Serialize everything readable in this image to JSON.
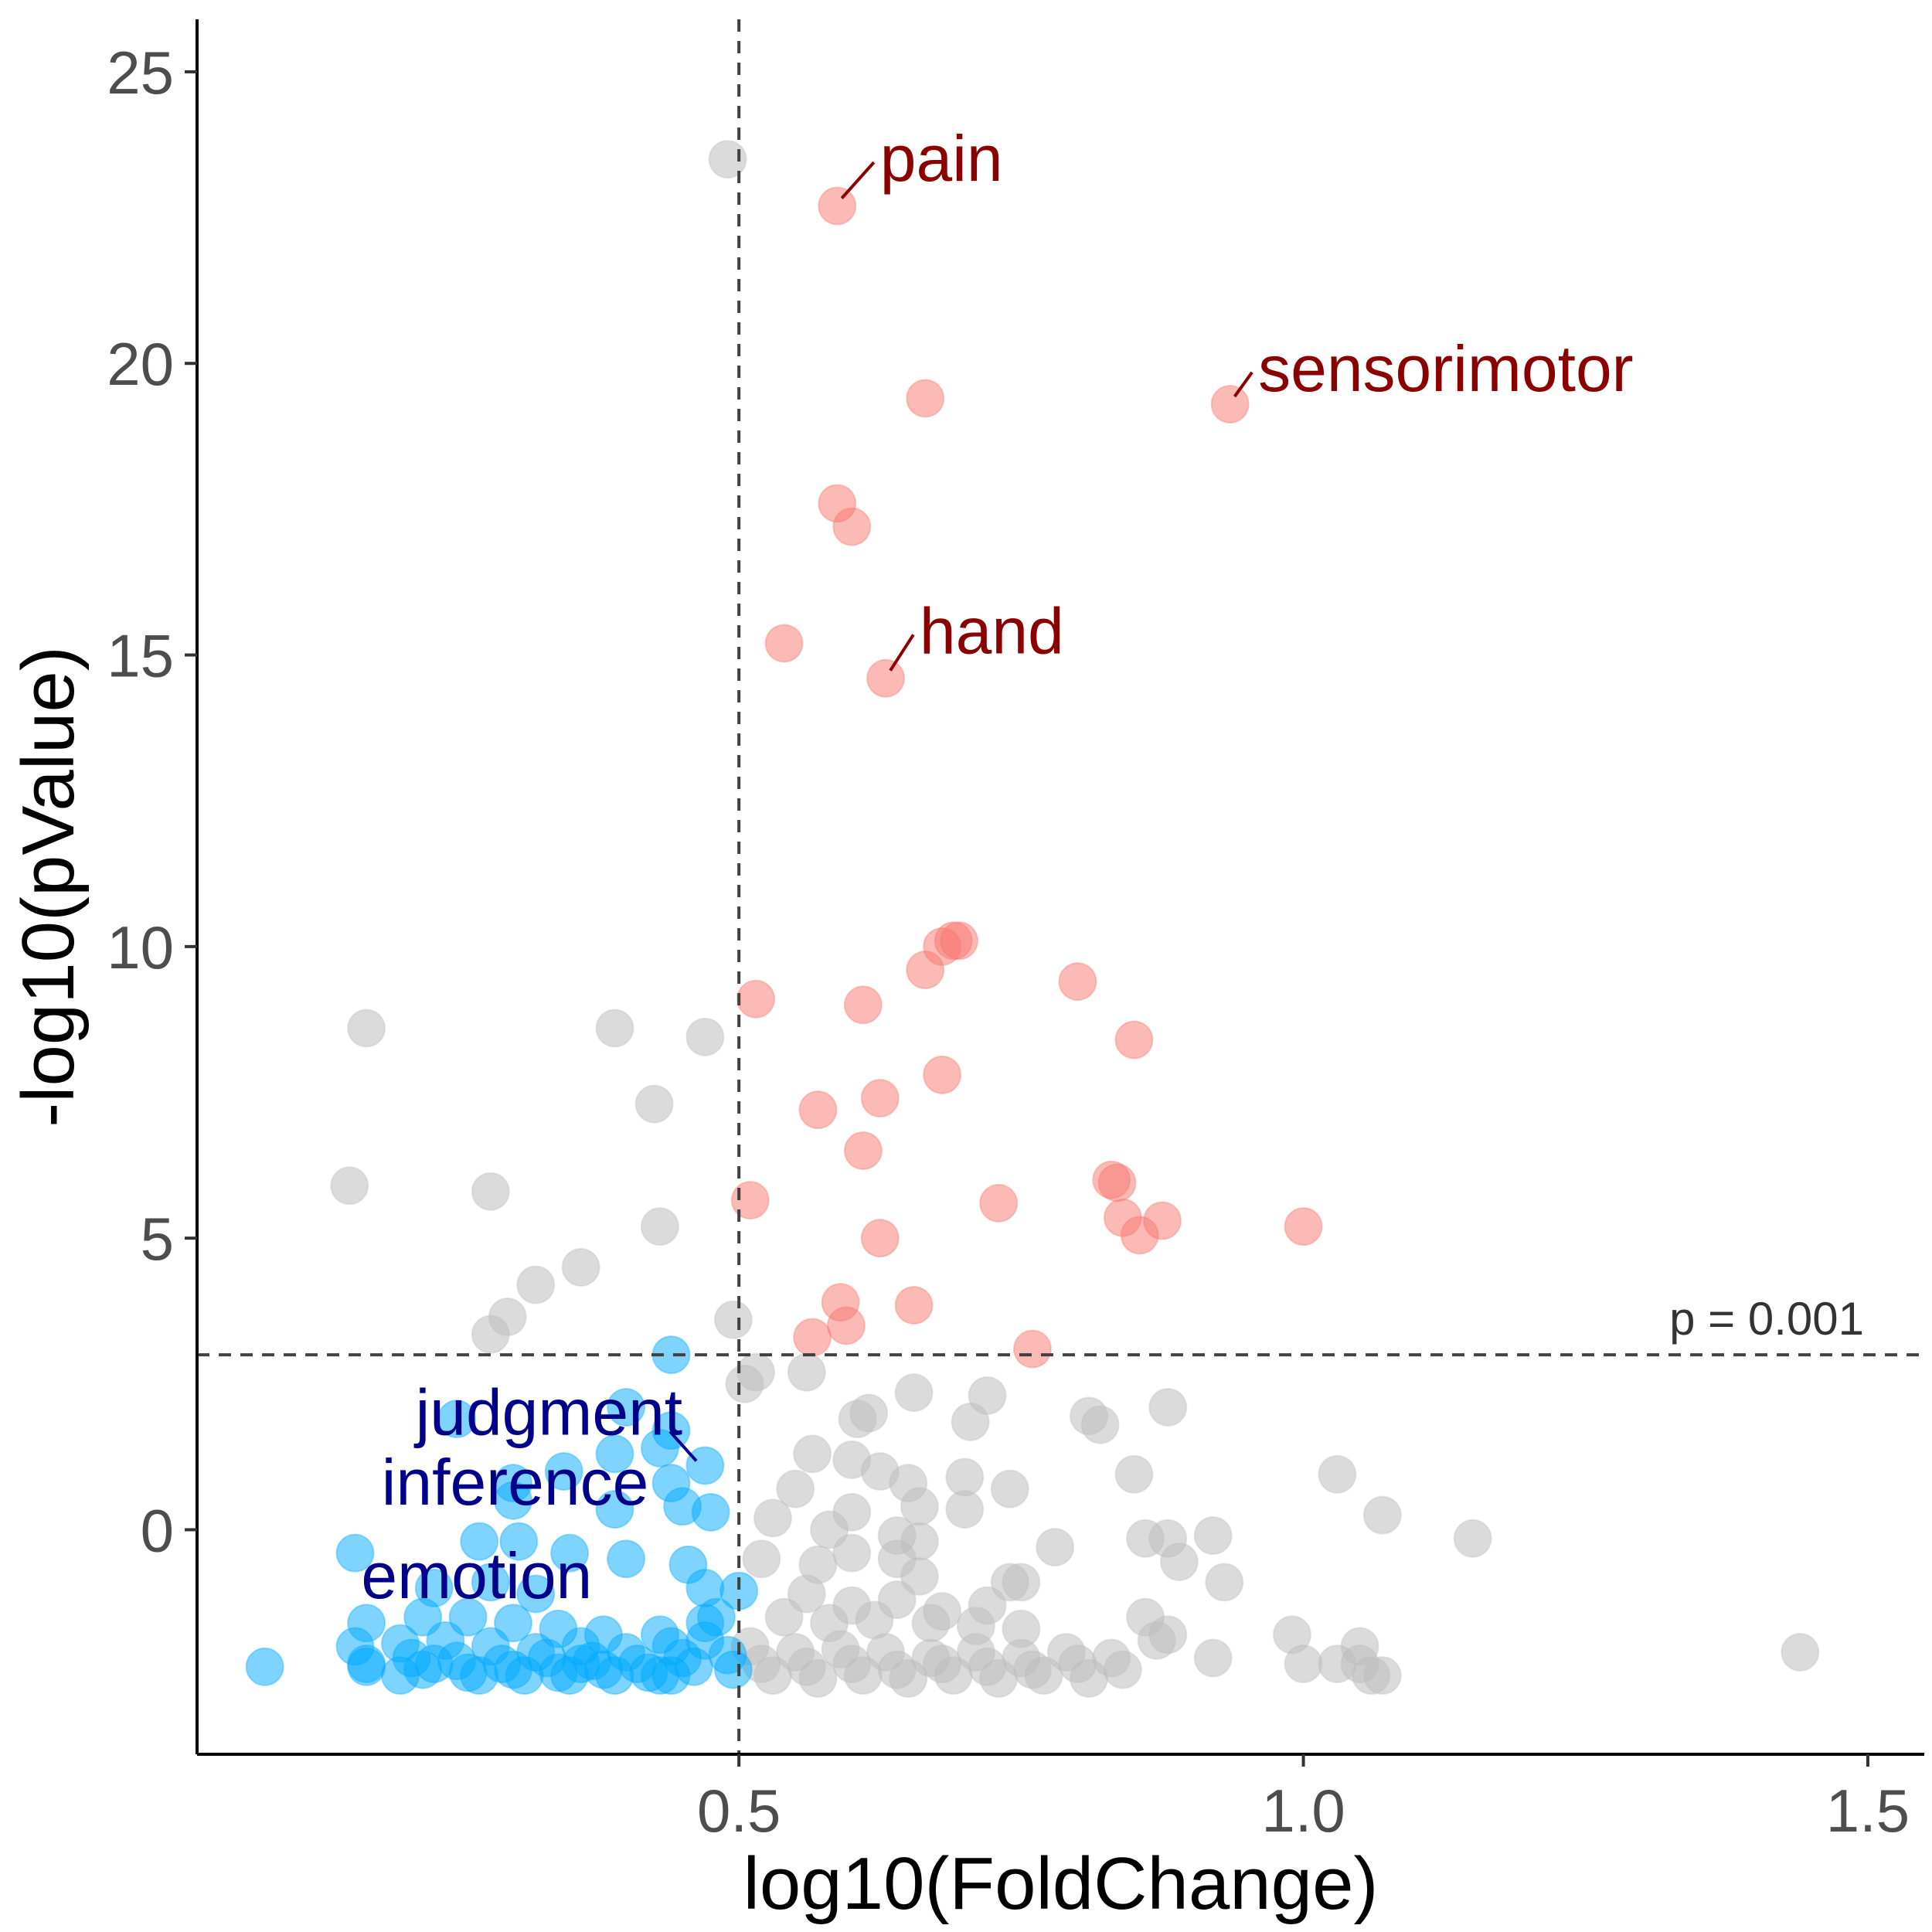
{
  "chart_data": {
    "type": "scatter",
    "xlabel": "log10(FoldChange)",
    "ylabel": "-log10(pValue)",
    "xlim": [
      0.02,
      1.55
    ],
    "ylim": [
      -3.85,
      25.9
    ],
    "xticks": [
      0.5,
      1.0,
      1.5
    ],
    "xtick_labels": [
      "0.5",
      "1.0",
      "1.5"
    ],
    "yticks": [
      0,
      5,
      10,
      15,
      20,
      25
    ],
    "ytick_labels": [
      "0",
      "5",
      "10",
      "15",
      "20",
      "25"
    ],
    "grid": false,
    "legend": "none",
    "reference_lines": {
      "vertical_x": 0.5,
      "horizontal_y": 3,
      "horizontal_label": "p = 0.001"
    },
    "colors": {
      "up": "#F8766D",
      "down": "#00A9FF",
      "ns": "#BEBEBE",
      "up_label": "#8B0000",
      "down_label": "#00008B"
    },
    "annotations": [
      {
        "text": "pain",
        "point": [
          0.587,
          22.7
        ],
        "label": [
          0.625,
          23.5
        ],
        "group": "up"
      },
      {
        "text": "sensorimotor",
        "point": [
          0.935,
          19.3
        ],
        "label": [
          0.96,
          19.9
        ],
        "group": "up"
      },
      {
        "text": "hand",
        "point": [
          0.63,
          14.6
        ],
        "label": [
          0.66,
          15.4
        ],
        "group": "up"
      },
      {
        "text": "judgment",
        "point": [
          0.465,
          1.1
        ],
        "label": [
          0.45,
          2.0
        ],
        "group": "down"
      },
      {
        "text": "inference",
        "point": [
          0.44,
          0.8
        ],
        "label": [
          0.42,
          0.8
        ],
        "group": "down"
      },
      {
        "text": "emotion",
        "point": [
          0.38,
          -0.8
        ],
        "label": [
          0.37,
          -0.8
        ],
        "group": "down"
      }
    ],
    "series": [
      {
        "group": "up",
        "points": [
          [
            0.587,
            22.7
          ],
          [
            0.665,
            19.4
          ],
          [
            0.935,
            19.3
          ],
          [
            0.587,
            17.6
          ],
          [
            0.6,
            17.2
          ],
          [
            0.54,
            15.2
          ],
          [
            0.63,
            14.6
          ],
          [
            0.695,
            10.1
          ],
          [
            0.69,
            10.1
          ],
          [
            0.68,
            10.0
          ],
          [
            0.665,
            9.6
          ],
          [
            0.8,
            9.4
          ],
          [
            0.515,
            9.1
          ],
          [
            0.61,
            9.0
          ],
          [
            0.85,
            8.4
          ],
          [
            0.68,
            7.8
          ],
          [
            0.625,
            7.4
          ],
          [
            0.57,
            7.2
          ],
          [
            0.61,
            6.5
          ],
          [
            0.83,
            6.0
          ],
          [
            0.835,
            5.95
          ],
          [
            0.51,
            5.65
          ],
          [
            0.73,
            5.6
          ],
          [
            0.84,
            5.35
          ],
          [
            0.875,
            5.3
          ],
          [
            0.855,
            5.05
          ],
          [
            1.0,
            5.2
          ],
          [
            0.625,
            5.0
          ],
          [
            0.59,
            3.9
          ],
          [
            0.655,
            3.85
          ],
          [
            0.595,
            3.5
          ],
          [
            0.565,
            3.3
          ],
          [
            0.76,
            3.1
          ]
        ]
      },
      {
        "group": "down",
        "points": [
          [
            0.44,
            3.0
          ],
          [
            0.4,
            2.1
          ],
          [
            0.25,
            1.9
          ],
          [
            0.44,
            1.7
          ],
          [
            0.43,
            1.4
          ],
          [
            0.39,
            1.3
          ],
          [
            0.345,
            1.0
          ],
          [
            0.3,
            0.8
          ],
          [
            0.44,
            0.8
          ],
          [
            0.47,
            1.1
          ],
          [
            0.39,
            0.35
          ],
          [
            0.45,
            0.4
          ],
          [
            0.475,
            0.3
          ],
          [
            0.3,
            0.5
          ],
          [
            0.27,
            -0.2
          ],
          [
            0.305,
            -0.2
          ],
          [
            0.35,
            -0.4
          ],
          [
            0.4,
            -0.5
          ],
          [
            0.455,
            -0.6
          ],
          [
            0.16,
            -0.4
          ],
          [
            0.28,
            -0.9
          ],
          [
            0.23,
            -1.0
          ],
          [
            0.32,
            -1.1
          ],
          [
            0.47,
            -1.0
          ],
          [
            0.5,
            -1.05
          ],
          [
            0.17,
            -1.6
          ],
          [
            0.22,
            -1.5
          ],
          [
            0.26,
            -1.5
          ],
          [
            0.3,
            -1.6
          ],
          [
            0.34,
            -1.7
          ],
          [
            0.38,
            -1.8
          ],
          [
            0.43,
            -1.8
          ],
          [
            0.47,
            -1.6
          ],
          [
            0.48,
            -1.5
          ],
          [
            0.16,
            -2.0
          ],
          [
            0.2,
            -1.95
          ],
          [
            0.24,
            -1.9
          ],
          [
            0.28,
            -2.0
          ],
          [
            0.32,
            -2.1
          ],
          [
            0.36,
            -2.0
          ],
          [
            0.4,
            -2.1
          ],
          [
            0.44,
            -2.0
          ],
          [
            0.47,
            -1.9
          ],
          [
            0.17,
            -2.3
          ],
          [
            0.21,
            -2.2
          ],
          [
            0.25,
            -2.25
          ],
          [
            0.29,
            -2.3
          ],
          [
            0.33,
            -2.2
          ],
          [
            0.37,
            -2.25
          ],
          [
            0.41,
            -2.3
          ],
          [
            0.45,
            -2.2
          ],
          [
            0.49,
            -2.15
          ],
          [
            0.08,
            -2.35
          ],
          [
            0.17,
            -2.35
          ],
          [
            0.22,
            -2.4
          ],
          [
            0.26,
            -2.45
          ],
          [
            0.3,
            -2.4
          ],
          [
            0.34,
            -2.45
          ],
          [
            0.38,
            -2.4
          ],
          [
            0.42,
            -2.45
          ],
          [
            0.46,
            -2.35
          ],
          [
            0.495,
            -2.4
          ],
          [
            0.2,
            -2.5
          ],
          [
            0.27,
            -2.5
          ],
          [
            0.31,
            -2.5
          ],
          [
            0.35,
            -2.5
          ],
          [
            0.39,
            -2.5
          ],
          [
            0.43,
            -2.5
          ],
          [
            0.23,
            -2.3
          ],
          [
            0.36,
            -2.3
          ],
          [
            0.44,
            -2.5
          ]
        ]
      },
      {
        "group": "ns",
        "points": [
          [
            0.49,
            23.5
          ],
          [
            0.17,
            8.6
          ],
          [
            0.39,
            8.6
          ],
          [
            0.47,
            8.45
          ],
          [
            0.425,
            7.3
          ],
          [
            0.155,
            5.9
          ],
          [
            0.28,
            5.8
          ],
          [
            0.43,
            5.2
          ],
          [
            0.36,
            4.5
          ],
          [
            0.32,
            4.2
          ],
          [
            0.295,
            3.65
          ],
          [
            0.28,
            3.35
          ],
          [
            0.495,
            3.6
          ],
          [
            0.515,
            2.7
          ],
          [
            0.505,
            2.5
          ],
          [
            0.56,
            2.7
          ],
          [
            0.655,
            2.35
          ],
          [
            0.72,
            2.3
          ],
          [
            0.615,
            2.0
          ],
          [
            0.605,
            1.9
          ],
          [
            0.705,
            1.85
          ],
          [
            0.81,
            1.95
          ],
          [
            0.82,
            1.8
          ],
          [
            0.88,
            2.1
          ],
          [
            0.565,
            1.3
          ],
          [
            0.6,
            1.2
          ],
          [
            0.625,
            1.0
          ],
          [
            0.65,
            0.8
          ],
          [
            0.55,
            0.7
          ],
          [
            0.7,
            0.9
          ],
          [
            0.74,
            0.7
          ],
          [
            0.85,
            0.95
          ],
          [
            1.03,
            0.95
          ],
          [
            1.07,
            0.25
          ],
          [
            1.15,
            -0.15
          ],
          [
            0.53,
            0.2
          ],
          [
            0.6,
            0.3
          ],
          [
            0.66,
            0.4
          ],
          [
            0.7,
            0.35
          ],
          [
            0.58,
            0.0
          ],
          [
            0.64,
            -0.1
          ],
          [
            0.66,
            -0.2
          ],
          [
            0.86,
            -0.15
          ],
          [
            0.88,
            -0.15
          ],
          [
            0.92,
            -0.1
          ],
          [
            0.78,
            -0.3
          ],
          [
            0.57,
            -0.6
          ],
          [
            0.6,
            -0.4
          ],
          [
            0.52,
            -0.5
          ],
          [
            0.64,
            -0.5
          ],
          [
            0.66,
            -0.8
          ],
          [
            0.74,
            -0.9
          ],
          [
            0.75,
            -0.9
          ],
          [
            0.89,
            -0.55
          ],
          [
            0.93,
            -0.9
          ],
          [
            0.56,
            -1.1
          ],
          [
            0.6,
            -1.3
          ],
          [
            0.64,
            -1.2
          ],
          [
            0.72,
            -1.3
          ],
          [
            0.68,
            -1.4
          ],
          [
            0.54,
            -1.5
          ],
          [
            0.58,
            -1.6
          ],
          [
            0.62,
            -1.55
          ],
          [
            0.67,
            -1.6
          ],
          [
            0.71,
            -1.65
          ],
          [
            0.75,
            -1.7
          ],
          [
            0.86,
            -1.5
          ],
          [
            0.88,
            -1.8
          ],
          [
            0.99,
            -1.8
          ],
          [
            1.05,
            -2.0
          ],
          [
            0.51,
            -2.0
          ],
          [
            0.55,
            -2.1
          ],
          [
            0.59,
            -2.05
          ],
          [
            0.63,
            -2.1
          ],
          [
            0.67,
            -2.2
          ],
          [
            0.71,
            -2.1
          ],
          [
            0.75,
            -2.2
          ],
          [
            0.79,
            -2.1
          ],
          [
            0.83,
            -2.2
          ],
          [
            0.87,
            -1.9
          ],
          [
            0.52,
            -2.3
          ],
          [
            0.56,
            -2.35
          ],
          [
            0.6,
            -2.3
          ],
          [
            0.64,
            -2.4
          ],
          [
            0.68,
            -2.3
          ],
          [
            0.72,
            -2.35
          ],
          [
            0.76,
            -2.4
          ],
          [
            0.8,
            -2.3
          ],
          [
            0.84,
            -2.4
          ],
          [
            0.92,
            -2.2
          ],
          [
            1.0,
            -2.3
          ],
          [
            1.03,
            -2.3
          ],
          [
            1.06,
            -2.5
          ],
          [
            1.07,
            -2.5
          ],
          [
            1.44,
            -2.1
          ],
          [
            0.53,
            -2.5
          ],
          [
            0.57,
            -2.55
          ],
          [
            0.61,
            -2.5
          ],
          [
            0.65,
            -2.55
          ],
          [
            0.69,
            -2.5
          ],
          [
            0.73,
            -2.55
          ],
          [
            0.77,
            -2.5
          ],
          [
            0.81,
            -2.55
          ],
          [
            1.05,
            -2.3
          ]
        ]
      }
    ]
  }
}
